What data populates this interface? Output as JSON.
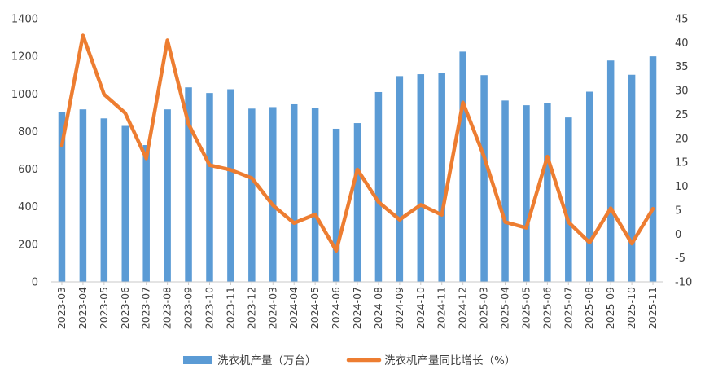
{
  "chart_data": {
    "type": "bar+line",
    "title": "",
    "categories": [
      "2023-03",
      "2023-04",
      "2023-05",
      "2023-06",
      "2023-07",
      "2023-08",
      "2023-09",
      "2023-10",
      "2023-11",
      "2023-12",
      "2024-03",
      "2024-04",
      "2024-05",
      "2024-06",
      "2024-07",
      "2024-08",
      "2024-09",
      "2024-10",
      "2024-11",
      "2024-12",
      "2025-03",
      "2025-04",
      "2025-05",
      "2025-06",
      "2025-07",
      "2025-08",
      "2025-09",
      "2025-10",
      "2025-11"
    ],
    "series": [
      {
        "name": "洗衣机产量（万台）",
        "type": "bar",
        "axis": "left",
        "color": "#5b9bd5",
        "values": [
          905,
          918,
          870,
          830,
          728,
          918,
          1035,
          1005,
          1025,
          922,
          930,
          945,
          925,
          815,
          845,
          1010,
          1095,
          1105,
          1110,
          1225,
          1100,
          965,
          940,
          950,
          875,
          1012,
          1178,
          1102,
          1200
        ]
      },
      {
        "name": "洗衣机产量同比增长（%）",
        "type": "line",
        "axis": "right",
        "color": "#ed7d31",
        "values": [
          18.5,
          41.5,
          29.2,
          25.3,
          15.8,
          40.5,
          23.0,
          14.4,
          13.4,
          11.7,
          6.0,
          2.3,
          4.1,
          -3.5,
          13.5,
          6.7,
          3.0,
          6.1,
          4.0,
          27.5,
          16.2,
          2.5,
          1.3,
          16.2,
          2.5,
          -1.8,
          5.4,
          -2.0,
          5.3
        ]
      }
    ],
    "y_left": {
      "min": 0,
      "max": 1400,
      "ticks": [
        0,
        200,
        400,
        600,
        800,
        1000,
        1200,
        1400
      ]
    },
    "y_right": {
      "min": -10,
      "max": 45,
      "ticks": [
        -10,
        -5,
        0,
        5,
        10,
        15,
        20,
        25,
        30,
        35,
        40,
        45
      ]
    },
    "grid": false,
    "legend_position": "bottom"
  }
}
